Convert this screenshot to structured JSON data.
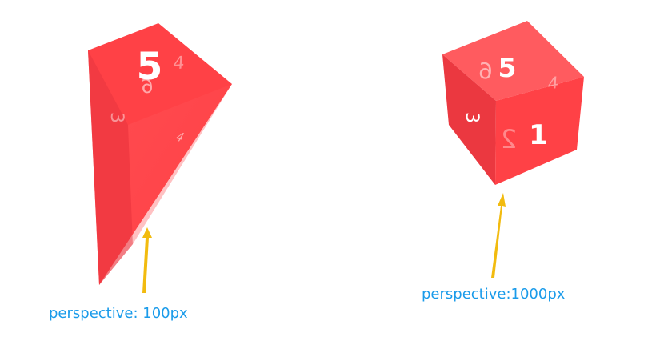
{
  "palette": {
    "die_red": "#ff4146",
    "die_red_dark": "#eb3840",
    "die_red_light": "#ff5b5f",
    "number_white": "#ffffff",
    "arrow_gold": "#f2bb0f",
    "caption_blue": "#1a9bea"
  },
  "left_example": {
    "caption": "perspective: 100px",
    "top_number": "5",
    "mirrored_number": "6",
    "side_number_a": "4",
    "side_number_b": "3",
    "side_number_c": "4"
  },
  "right_example": {
    "caption": "perspective:1000px",
    "top_number": "5",
    "mirrored_top_number": "6",
    "front_number": "1",
    "mirrored_front_number": "2",
    "left_number": "3",
    "right_number": "4"
  }
}
